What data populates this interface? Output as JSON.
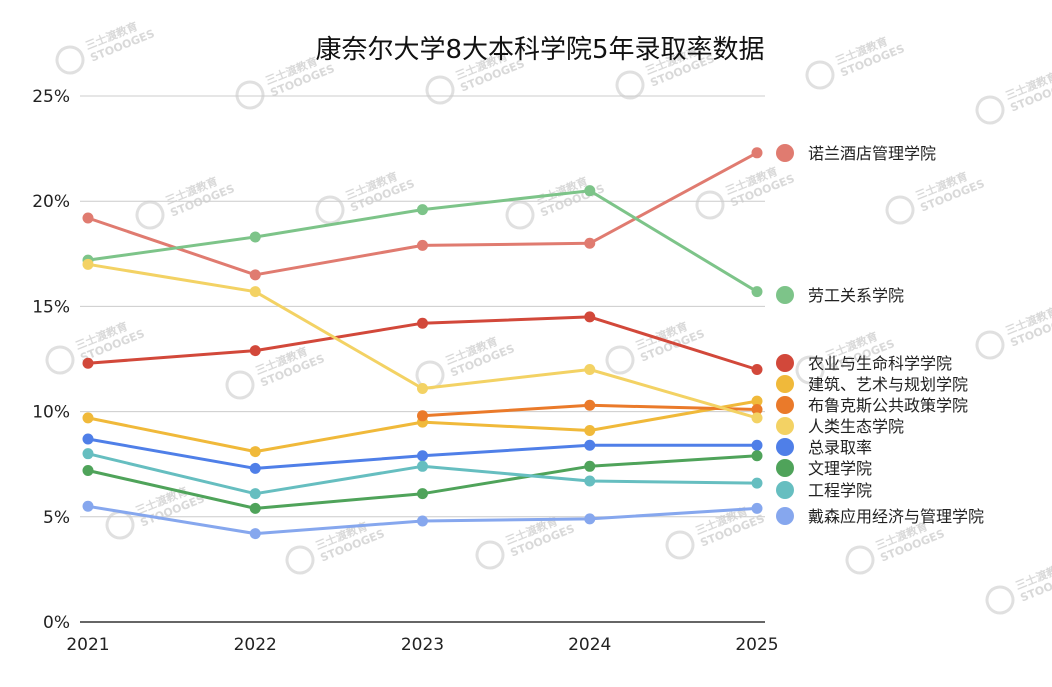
{
  "chart_data": {
    "type": "line",
    "title": "康奈尔大学8大本科学院5年录取率数据",
    "x": [
      "2021",
      "2022",
      "2023",
      "2024",
      "2025"
    ],
    "y_ticks": [
      "0%",
      "5%",
      "10%",
      "15%",
      "20%",
      "25%"
    ],
    "ylim": [
      0,
      25
    ],
    "grid": true,
    "legend_position": "right, beside line ends",
    "series": [
      {
        "name": "诺兰酒店管理学院",
        "color": "#E07B70",
        "values": [
          19.2,
          16.5,
          17.9,
          18.0,
          22.3
        ]
      },
      {
        "name": "劳工关系学院",
        "color": "#7DC489",
        "values": [
          17.2,
          18.3,
          19.6,
          20.5,
          15.7
        ]
      },
      {
        "name": "农业与生命科学学院",
        "color": "#D2483A",
        "values": [
          12.3,
          12.9,
          14.2,
          14.5,
          12.0
        ]
      },
      {
        "name": "建筑、艺术与规划学院",
        "color": "#F0B93A",
        "values": [
          9.7,
          8.1,
          9.5,
          9.1,
          10.5
        ]
      },
      {
        "name": "布鲁克斯公共政策学院",
        "color": "#EA7A2A",
        "values": [
          null,
          null,
          9.8,
          10.3,
          10.1
        ]
      },
      {
        "name": "人类生态学院",
        "color": "#F3D264",
        "values": [
          17.0,
          15.7,
          11.1,
          12.0,
          9.7
        ]
      },
      {
        "name": "总录取率",
        "color": "#4F7FE8",
        "values": [
          8.7,
          7.3,
          7.9,
          8.4,
          8.4
        ]
      },
      {
        "name": "文理学院",
        "color": "#4FA35A",
        "values": [
          7.2,
          5.4,
          6.1,
          7.4,
          7.9
        ]
      },
      {
        "name": "工程学院",
        "color": "#66BEC0",
        "values": [
          8.0,
          6.1,
          7.4,
          6.7,
          6.6
        ]
      },
      {
        "name": "戴森应用经济与管理学院",
        "color": "#86A7EE",
        "values": [
          5.5,
          4.2,
          4.8,
          4.9,
          5.4
        ]
      }
    ]
  },
  "watermark": {
    "cn": "三士渡教育",
    "en": "STOOOGES"
  }
}
